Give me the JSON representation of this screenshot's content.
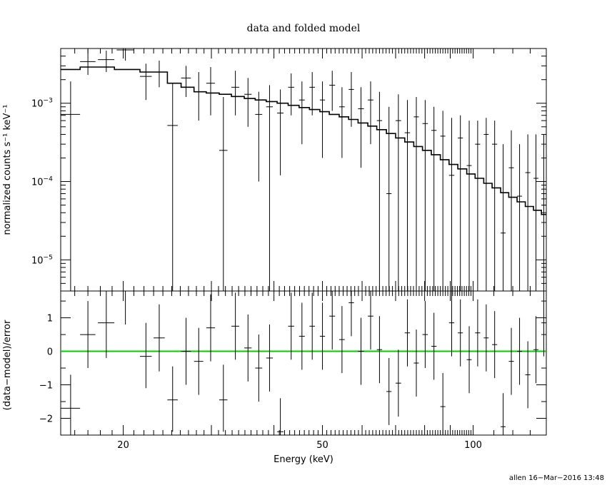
{
  "chart_data": [
    {
      "type": "scatter",
      "title": "data and folded model",
      "ylabel": "normalized counts s⁻¹ keV⁻¹",
      "xlim": [
        15,
        140
      ],
      "ylim": [
        4e-06,
        0.005
      ],
      "xscale": "log",
      "yscale": "log",
      "ytick_labels": [
        {
          "value": 0.001,
          "base": "10",
          "exp": "−3"
        },
        {
          "value": 0.0001,
          "base": "10",
          "exp": "−4"
        },
        {
          "value": 1e-05,
          "base": "10",
          "exp": "−5"
        }
      ],
      "series": [
        {
          "kind": "data",
          "points": [
            {
              "x": 15.7,
              "dx": 0.7,
              "y": 0.00072,
              "ylo": 4e-06,
              "yhi": 0.0019
            },
            {
              "x": 17.0,
              "dx": 0.6,
              "y": 0.0034,
              "ylo": 0.0023,
              "yhi": 0.0049
            },
            {
              "x": 18.5,
              "dx": 0.7,
              "y": 0.0036,
              "ylo": 0.0025,
              "yhi": 0.0047
            },
            {
              "x": 20.2,
              "dx": 0.8,
              "y": 0.0048,
              "ylo": 0.0035,
              "yhi": 0.005
            },
            {
              "x": 22.2,
              "dx": 0.6,
              "y": 0.0022,
              "ylo": 0.0011,
              "yhi": 0.0032
            },
            {
              "x": 23.6,
              "dx": 0.6,
              "y": 0.0025,
              "ylo": 0.0016,
              "yhi": 0.0035
            },
            {
              "x": 25.1,
              "dx": 0.6,
              "y": 0.00052,
              "ylo": 4e-06,
              "yhi": 0.0018
            },
            {
              "x": 26.7,
              "dx": 0.6,
              "y": 0.0021,
              "ylo": 0.0012,
              "yhi": 0.003
            },
            {
              "x": 28.3,
              "dx": 0.6,
              "y": 0.0014,
              "ylo": 0.0006,
              "yhi": 0.0025
            },
            {
              "x": 29.9,
              "dx": 0.6,
              "y": 0.0018,
              "ylo": 0.0007,
              "yhi": 0.0029
            },
            {
              "x": 31.7,
              "dx": 0.6,
              "y": 0.00025,
              "ylo": 4e-06,
              "yhi": 0.0012
            },
            {
              "x": 33.5,
              "dx": 0.6,
              "y": 0.0016,
              "ylo": 0.0007,
              "yhi": 0.0026
            },
            {
              "x": 35.5,
              "dx": 0.6,
              "y": 0.0013,
              "ylo": 0.0005,
              "yhi": 0.0021
            },
            {
              "x": 37.3,
              "dx": 0.6,
              "y": 0.00072,
              "ylo": 0.0001,
              "yhi": 0.0014
            },
            {
              "x": 39.2,
              "dx": 0.6,
              "y": 0.0009,
              "ylo": 4e-06,
              "yhi": 0.0017
            },
            {
              "x": 41.2,
              "dx": 0.6,
              "y": 0.00075,
              "ylo": 0.00012,
              "yhi": 0.0015
            },
            {
              "x": 43.3,
              "dx": 0.6,
              "y": 0.0016,
              "ylo": 0.0007,
              "yhi": 0.0024
            },
            {
              "x": 45.5,
              "dx": 0.6,
              "y": 0.0011,
              "ylo": 0.0003,
              "yhi": 0.0019
            },
            {
              "x": 47.7,
              "dx": 0.6,
              "y": 0.0016,
              "ylo": 0.0007,
              "yhi": 0.0025
            },
            {
              "x": 50.0,
              "dx": 0.6,
              "y": 0.0011,
              "ylo": 0.0002,
              "yhi": 0.0019
            },
            {
              "x": 52.3,
              "dx": 0.7,
              "y": 0.0017,
              "ylo": 0.0008,
              "yhi": 0.0026
            },
            {
              "x": 54.7,
              "dx": 0.7,
              "y": 0.0009,
              "ylo": 0.0002,
              "yhi": 0.0016
            },
            {
              "x": 57.1,
              "dx": 0.7,
              "y": 0.0015,
              "ylo": 0.0005,
              "yhi": 0.0025
            },
            {
              "x": 59.7,
              "dx": 0.8,
              "y": 0.00085,
              "ylo": 0.00015,
              "yhi": 0.0016
            },
            {
              "x": 62.4,
              "dx": 0.8,
              "y": 0.0011,
              "ylo": 0.0003,
              "yhi": 0.0019
            },
            {
              "x": 65.0,
              "dx": 0.8,
              "y": 0.0006,
              "ylo": 4e-06,
              "yhi": 0.0014
            },
            {
              "x": 67.9,
              "dx": 0.8,
              "y": 7e-05,
              "ylo": 4e-06,
              "yhi": 0.0009
            },
            {
              "x": 70.9,
              "dx": 0.9,
              "y": 0.0006,
              "ylo": 4e-06,
              "yhi": 0.0013
            },
            {
              "x": 73.9,
              "dx": 0.9,
              "y": 0.00042,
              "ylo": 4e-06,
              "yhi": 0.0011
            },
            {
              "x": 77.0,
              "dx": 0.9,
              "y": 0.00067,
              "ylo": 4e-06,
              "yhi": 0.0012
            },
            {
              "x": 80.2,
              "dx": 1.0,
              "y": 0.00055,
              "ylo": 4e-06,
              "yhi": 0.0011
            },
            {
              "x": 83.5,
              "dx": 1.0,
              "y": 0.00045,
              "ylo": 4e-06,
              "yhi": 0.0009
            },
            {
              "x": 87.0,
              "dx": 1.0,
              "y": 0.00038,
              "ylo": 4e-06,
              "yhi": 0.0008
            },
            {
              "x": 90.6,
              "dx": 1.1,
              "y": 0.00012,
              "ylo": 4e-06,
              "yhi": 0.00065
            },
            {
              "x": 94.3,
              "dx": 1.1,
              "y": 0.00036,
              "ylo": 4e-06,
              "yhi": 0.0007
            },
            {
              "x": 98.2,
              "dx": 1.1,
              "y": 0.00016,
              "ylo": 4e-06,
              "yhi": 0.0006
            },
            {
              "x": 102.1,
              "dx": 1.2,
              "y": 0.0003,
              "ylo": 4e-06,
              "yhi": 0.0006
            },
            {
              "x": 106.2,
              "dx": 1.2,
              "y": 0.0004,
              "ylo": 4e-06,
              "yhi": 0.00065
            },
            {
              "x": 110.4,
              "dx": 1.3,
              "y": 0.0003,
              "ylo": 4e-06,
              "yhi": 0.0006
            },
            {
              "x": 114.8,
              "dx": 1.3,
              "y": 2.2e-05,
              "ylo": 4e-06,
              "yhi": 0.0003
            },
            {
              "x": 119.2,
              "dx": 1.4,
              "y": 0.00015,
              "ylo": 4e-06,
              "yhi": 0.00045
            },
            {
              "x": 123.8,
              "dx": 1.4,
              "y": 6.5e-05,
              "ylo": 4e-06,
              "yhi": 0.0003
            },
            {
              "x": 128.6,
              "dx": 1.5,
              "y": 0.00013,
              "ylo": 4e-06,
              "yhi": 0.0004
            },
            {
              "x": 133.5,
              "dx": 1.5,
              "y": 0.00011,
              "ylo": 4e-06,
              "yhi": 0.0004
            },
            {
              "x": 138.4,
              "dx": 1.5,
              "y": 5e-05,
              "ylo": 4e-06,
              "yhi": 0.0004
            }
          ]
        },
        {
          "kind": "model",
          "steps": [
            {
              "x0": 15.0,
              "y": 0.0027
            },
            {
              "x0": 16.4,
              "y": 0.0029
            },
            {
              "x0": 19.2,
              "y": 0.0027
            },
            {
              "x0": 21.6,
              "y": 0.0025
            },
            {
              "x0": 24.5,
              "y": 0.0018
            },
            {
              "x0": 26.1,
              "y": 0.0016
            },
            {
              "x0": 27.7,
              "y": 0.0014
            },
            {
              "x0": 29.3,
              "y": 0.00135
            },
            {
              "x0": 31.1,
              "y": 0.0013
            },
            {
              "x0": 32.9,
              "y": 0.00122
            },
            {
              "x0": 34.9,
              "y": 0.00115
            },
            {
              "x0": 36.7,
              "y": 0.0011
            },
            {
              "x0": 38.6,
              "y": 0.00105
            },
            {
              "x0": 40.6,
              "y": 0.001
            },
            {
              "x0": 42.7,
              "y": 0.00094
            },
            {
              "x0": 44.9,
              "y": 0.00088
            },
            {
              "x0": 47.1,
              "y": 0.00083
            },
            {
              "x0": 49.4,
              "y": 0.00078
            },
            {
              "x0": 51.6,
              "y": 0.00072
            },
            {
              "x0": 54.0,
              "y": 0.00067
            },
            {
              "x0": 56.4,
              "y": 0.00062
            },
            {
              "x0": 58.9,
              "y": 0.00056
            },
            {
              "x0": 61.6,
              "y": 0.00051
            },
            {
              "x0": 64.2,
              "y": 0.00046
            },
            {
              "x0": 67.1,
              "y": 0.00041
            },
            {
              "x0": 70.0,
              "y": 0.00036
            },
            {
              "x0": 73.0,
              "y": 0.00032
            },
            {
              "x0": 76.1,
              "y": 0.00028
            },
            {
              "x0": 79.2,
              "y": 0.00025
            },
            {
              "x0": 82.5,
              "y": 0.00022
            },
            {
              "x0": 86.0,
              "y": 0.00019
            },
            {
              "x0": 89.5,
              "y": 0.000165
            },
            {
              "x0": 93.2,
              "y": 0.000145
            },
            {
              "x0": 97.1,
              "y": 0.000125
            },
            {
              "x0": 100.9,
              "y": 0.00011
            },
            {
              "x0": 105.0,
              "y": 9.5e-05
            },
            {
              "x0": 109.1,
              "y": 8.3e-05
            },
            {
              "x0": 113.5,
              "y": 7.2e-05
            },
            {
              "x0": 117.8,
              "y": 6.3e-05
            },
            {
              "x0": 122.4,
              "y": 5.5e-05
            },
            {
              "x0": 127.1,
              "y": 4.8e-05
            },
            {
              "x0": 132.0,
              "y": 4.3e-05
            },
            {
              "x0": 136.9,
              "y": 3.8e-05
            }
          ],
          "x_end": 140.0
        }
      ]
    },
    {
      "type": "scatter",
      "xlabel": "Energy (keV)",
      "ylabel": "(data−model)/error",
      "xlim": [
        15,
        140
      ],
      "ylim": [
        -2.5,
        1.8
      ],
      "xscale": "log",
      "xticks": [
        20,
        50,
        100
      ],
      "xtick_labels": [
        "20",
        "50",
        "100"
      ],
      "yticks": [
        1,
        0,
        -1,
        -2
      ],
      "ytick_labels": [
        "1",
        "0",
        "−1",
        "−2"
      ],
      "zero_line_color": "#00cc00",
      "points": [
        {
          "x": 15.7,
          "dx": 0.7,
          "y": -1.7,
          "ylo": -2.5,
          "yhi": -0.7
        },
        {
          "x": 17.0,
          "dx": 0.6,
          "y": 0.5,
          "ylo": -0.5,
          "yhi": 1.5
        },
        {
          "x": 18.5,
          "dx": 0.7,
          "y": 0.85,
          "ylo": -0.2,
          "yhi": 1.8
        },
        {
          "x": 20.2,
          "dx": 0.8,
          "y": 1.8,
          "ylo": 0.8,
          "yhi": 1.8
        },
        {
          "x": 22.2,
          "dx": 0.6,
          "y": -0.15,
          "ylo": -1.1,
          "yhi": 0.85
        },
        {
          "x": 23.6,
          "dx": 0.6,
          "y": 0.4,
          "ylo": -0.6,
          "yhi": 1.4
        },
        {
          "x": 25.1,
          "dx": 0.6,
          "y": -1.45,
          "ylo": -2.4,
          "yhi": -0.45
        },
        {
          "x": 26.7,
          "dx": 0.6,
          "y": 0.0,
          "ylo": -1.0,
          "yhi": 1.0
        },
        {
          "x": 28.3,
          "dx": 0.6,
          "y": -0.3,
          "ylo": -1.3,
          "yhi": 0.7
        },
        {
          "x": 29.9,
          "dx": 0.6,
          "y": 0.7,
          "ylo": -0.3,
          "yhi": 1.7
        },
        {
          "x": 31.7,
          "dx": 0.6,
          "y": -1.45,
          "ylo": -2.4,
          "yhi": -0.4
        },
        {
          "x": 33.5,
          "dx": 0.6,
          "y": 0.75,
          "ylo": -0.25,
          "yhi": 1.75
        },
        {
          "x": 35.5,
          "dx": 0.6,
          "y": 0.1,
          "ylo": -0.9,
          "yhi": 1.1
        },
        {
          "x": 37.3,
          "dx": 0.6,
          "y": -0.5,
          "ylo": -1.5,
          "yhi": 0.5
        },
        {
          "x": 39.2,
          "dx": 0.6,
          "y": -0.2,
          "ylo": -1.2,
          "yhi": 0.8
        },
        {
          "x": 41.2,
          "dx": 0.6,
          "y": -2.4,
          "ylo": -2.5,
          "yhi": -1.4
        },
        {
          "x": 43.3,
          "dx": 0.6,
          "y": 0.75,
          "ylo": -0.25,
          "yhi": 1.75
        },
        {
          "x": 45.5,
          "dx": 0.6,
          "y": 0.45,
          "ylo": -0.55,
          "yhi": 1.45
        },
        {
          "x": 47.7,
          "dx": 0.6,
          "y": 0.75,
          "ylo": -0.25,
          "yhi": 1.75
        },
        {
          "x": 50.0,
          "dx": 0.6,
          "y": 0.45,
          "ylo": -0.55,
          "yhi": 1.45
        },
        {
          "x": 52.3,
          "dx": 0.7,
          "y": 1.05,
          "ylo": 0.05,
          "yhi": 1.8
        },
        {
          "x": 54.7,
          "dx": 0.7,
          "y": 0.35,
          "ylo": -0.65,
          "yhi": 1.35
        },
        {
          "x": 57.1,
          "dx": 0.7,
          "y": 1.45,
          "ylo": 0.45,
          "yhi": 1.8
        },
        {
          "x": 59.7,
          "dx": 0.8,
          "y": 0.0,
          "ylo": -1.0,
          "yhi": 1.0
        },
        {
          "x": 62.4,
          "dx": 0.8,
          "y": 1.05,
          "ylo": 0.05,
          "yhi": 1.8
        },
        {
          "x": 65.0,
          "dx": 0.8,
          "y": 0.05,
          "ylo": -0.95,
          "yhi": 1.05
        },
        {
          "x": 67.9,
          "dx": 0.8,
          "y": -1.2,
          "ylo": -2.2,
          "yhi": -0.2
        },
        {
          "x": 70.9,
          "dx": 0.9,
          "y": -0.95,
          "ylo": -1.95,
          "yhi": 0.05
        },
        {
          "x": 73.9,
          "dx": 0.9,
          "y": 0.55,
          "ylo": -0.45,
          "yhi": 1.55
        },
        {
          "x": 77.0,
          "dx": 0.9,
          "y": -0.35,
          "ylo": -1.35,
          "yhi": 0.65
        },
        {
          "x": 80.2,
          "dx": 1.0,
          "y": 0.5,
          "ylo": -0.5,
          "yhi": 1.5
        },
        {
          "x": 83.5,
          "dx": 1.0,
          "y": 0.15,
          "ylo": -0.85,
          "yhi": 1.15
        },
        {
          "x": 87.0,
          "dx": 1.0,
          "y": -1.65,
          "ylo": -2.5,
          "yhi": -0.65
        },
        {
          "x": 90.6,
          "dx": 1.1,
          "y": 0.85,
          "ylo": -0.15,
          "yhi": 1.8
        },
        {
          "x": 94.3,
          "dx": 1.1,
          "y": 0.55,
          "ylo": -0.45,
          "yhi": 1.55
        },
        {
          "x": 98.2,
          "dx": 1.1,
          "y": -0.25,
          "ylo": -1.25,
          "yhi": 0.75
        },
        {
          "x": 102.1,
          "dx": 1.2,
          "y": 0.55,
          "ylo": -0.45,
          "yhi": 1.55
        },
        {
          "x": 106.2,
          "dx": 1.2,
          "y": 0.4,
          "ylo": -0.6,
          "yhi": 1.4
        },
        {
          "x": 110.4,
          "dx": 1.3,
          "y": 0.2,
          "ylo": -0.8,
          "yhi": 1.2
        },
        {
          "x": 114.8,
          "dx": 1.3,
          "y": -2.25,
          "ylo": -2.5,
          "yhi": -1.25
        },
        {
          "x": 119.2,
          "dx": 1.4,
          "y": -0.3,
          "ylo": -1.3,
          "yhi": 0.7
        },
        {
          "x": 123.8,
          "dx": 1.4,
          "y": 0.0,
          "ylo": -1.0,
          "yhi": 1.0
        },
        {
          "x": 128.6,
          "dx": 1.5,
          "y": -0.7,
          "ylo": -1.7,
          "yhi": 0.3
        },
        {
          "x": 133.5,
          "dx": 1.5,
          "y": 0.05,
          "ylo": -0.95,
          "yhi": 1.05
        },
        {
          "x": 138.4,
          "dx": 1.5,
          "y": 0.85,
          "ylo": -0.15,
          "yhi": 1.8
        }
      ]
    }
  ],
  "footer": "allen 16−Mar−2016 13:48"
}
